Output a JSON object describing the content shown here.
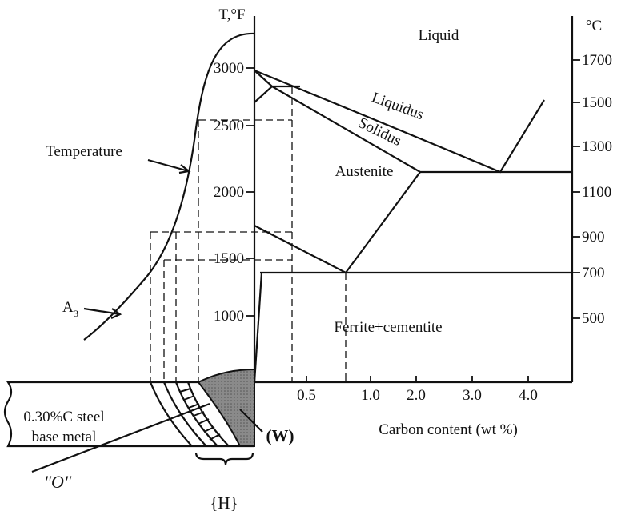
{
  "left_axis": {
    "label": "T,°F",
    "ticks": [
      "3000",
      "2500",
      "2000",
      "1500",
      "1000"
    ]
  },
  "right_axis": {
    "label": "°C",
    "ticks": [
      "1700",
      "1500",
      "1300",
      "1100",
      "900",
      "700",
      "500"
    ]
  },
  "x_axis": {
    "label": "Carbon content (wt %)",
    "ticks": [
      "0.5",
      "1.0",
      "2.0",
      "3.0",
      "4.0"
    ]
  },
  "regions": {
    "liquid": "Liquid",
    "austenite": "Austenite",
    "ferrite_cementite": "Ferrite+cementite"
  },
  "curves": {
    "liquidus": "Liquidus",
    "solidus": "Solidus"
  },
  "annotations": {
    "temperature": "Temperature",
    "a3": "A",
    "a3_sub": "3",
    "base_metal_1": "0.30%C steel",
    "base_metal_2": "base metal",
    "weld": "(W)",
    "haz": "{H}",
    "o": "\"O\""
  }
}
